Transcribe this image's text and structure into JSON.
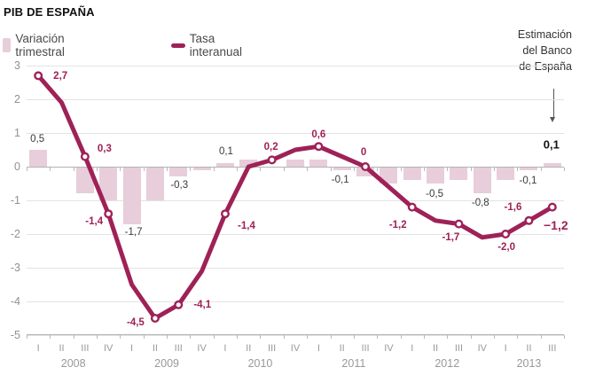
{
  "title": "PIB DE ESPAÑA",
  "legend": [
    {
      "label": "Variación trimestral",
      "type": "bar"
    },
    {
      "label": "Tasa interanual",
      "type": "line"
    }
  ],
  "annotation": {
    "text_lines": [
      "Estimación",
      "del Banco",
      "de España"
    ]
  },
  "colors": {
    "line": "#9e2157",
    "bar": "#e8cdda",
    "bar_label": "#3a3a3a",
    "line_label": "#9e2157",
    "final_bar_label": "#111111",
    "axis_text": "#999999",
    "grid": "#e3e3e3",
    "axis_line": "#b3b3b3"
  },
  "chart_data": {
    "type": "bar+line",
    "title": "PIB DE ESPAÑA",
    "ylim": [
      -5,
      3
    ],
    "yticks": [
      "3",
      "2",
      "1",
      "0",
      "-1",
      "-2",
      "-3",
      "-4",
      "-5"
    ],
    "grid": "horizontal",
    "legend_position": "top-left",
    "years": [
      {
        "year": "2008",
        "quarters": [
          "I",
          "II",
          "III",
          "IV"
        ]
      },
      {
        "year": "2009",
        "quarters": [
          "I",
          "II",
          "III",
          "IV"
        ]
      },
      {
        "year": "2010",
        "quarters": [
          "I",
          "II",
          "III",
          "IV"
        ]
      },
      {
        "year": "2011",
        "quarters": [
          "I",
          "II",
          "III",
          "IV"
        ]
      },
      {
        "year": "2012",
        "quarters": [
          "I",
          "II",
          "III",
          "IV"
        ]
      },
      {
        "year": "2013",
        "quarters": [
          "I",
          "II",
          "III"
        ]
      }
    ],
    "series": [
      {
        "name": "Variación trimestral",
        "type": "bar",
        "values": [
          0.5,
          0.0,
          -0.8,
          -1.0,
          -1.7,
          -1.0,
          -0.3,
          -0.1,
          0.1,
          0.2,
          0.0,
          0.2,
          0.2,
          -0.1,
          -0.3,
          -0.5,
          -0.4,
          -0.5,
          -0.4,
          -0.8,
          -0.4,
          -0.1,
          0.1
        ],
        "point_labels": [
          {
            "q": 0,
            "text": "0,5"
          },
          {
            "q": 4,
            "text": "-1,7"
          },
          {
            "q": 6,
            "text": "-0,3"
          },
          {
            "q": 8,
            "text": "0,1"
          },
          {
            "q": 13,
            "text": "-0,1"
          },
          {
            "q": 17,
            "text": "-0,5"
          },
          {
            "q": 19,
            "text": "-0,8"
          },
          {
            "q": 21,
            "text": "-0,1"
          },
          {
            "q": 22,
            "text": "0,1",
            "bold": true
          }
        ]
      },
      {
        "name": "Tasa interanual",
        "type": "line",
        "values": [
          2.7,
          1.9,
          0.3,
          -1.4,
          -3.5,
          -4.5,
          -4.1,
          -3.1,
          -1.4,
          0.0,
          0.2,
          0.5,
          0.6,
          0.3,
          0.0,
          -0.6,
          -1.2,
          -1.6,
          -1.7,
          -2.1,
          -2.0,
          -1.6,
          -1.2
        ],
        "marker_quarters": [
          0,
          2,
          3,
          5,
          6,
          8,
          10,
          12,
          14,
          16,
          18,
          20,
          21,
          22
        ],
        "point_labels": [
          {
            "q": 0,
            "text": "2,7"
          },
          {
            "q": 2,
            "text": "0,3"
          },
          {
            "q": 3,
            "text": "-1,4"
          },
          {
            "q": 5,
            "text": "-4,5"
          },
          {
            "q": 6,
            "text": "-4,1"
          },
          {
            "q": 8,
            "text": "-1,4"
          },
          {
            "q": 10,
            "text": "0,2"
          },
          {
            "q": 12,
            "text": "0,6"
          },
          {
            "q": 14,
            "text": "0"
          },
          {
            "q": 16,
            "text": "-1,2"
          },
          {
            "q": 18,
            "text": "-1,7"
          },
          {
            "q": 20,
            "text": "-2,0"
          },
          {
            "q": 21,
            "text": "-1,6"
          },
          {
            "q": 22,
            "text": "−1,2",
            "bold": true
          }
        ]
      }
    ]
  }
}
